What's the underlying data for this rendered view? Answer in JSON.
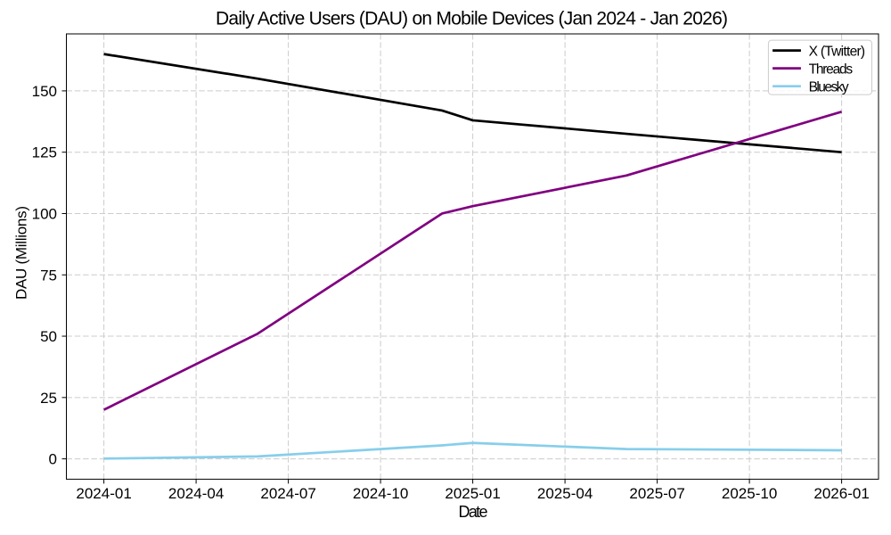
{
  "figure": {
    "background": "#ffffff",
    "text_color": "#000000"
  },
  "chart_data": {
    "type": "line",
    "title": "Daily Active Users (DAU) on Mobile Devices (Jan 2024 - Jan 2026)",
    "xlabel": "Date",
    "ylabel": "DAU (Millions)",
    "x_dates": [
      "2024-01",
      "2024-06",
      "2024-12",
      "2025-01",
      "2025-06",
      "2026-01"
    ],
    "series": [
      {
        "name": "X (Twitter)",
        "color": "#000000",
        "values": [
          165,
          155,
          142,
          138,
          132.5,
          125
        ]
      },
      {
        "name": "Threads",
        "color": "#800080",
        "values": [
          20,
          51,
          100,
          103,
          115.5,
          141.5
        ]
      },
      {
        "name": "Bluesky",
        "color": "#87ceeb",
        "values": [
          0.1,
          1,
          5.5,
          6.5,
          4,
          3.5
        ]
      }
    ],
    "x_tick_labels": [
      "2024-01",
      "2024-04",
      "2024-07",
      "2024-10",
      "2025-01",
      "2025-04",
      "2025-07",
      "2025-10",
      "2026-01"
    ],
    "y_tick_labels": [
      "0",
      "25",
      "50",
      "75",
      "100",
      "125",
      "150"
    ],
    "y_ticks": [
      0,
      25,
      50,
      75,
      100,
      125,
      150
    ],
    "ylim": [
      -8.25,
      173.25
    ],
    "xlim_months": [
      -1.2,
      25.2
    ],
    "grid": {
      "on": true,
      "style": "dashed",
      "color": "#cccccc"
    },
    "legend": {
      "position": "upper right",
      "entries": [
        "X (Twitter)",
        "Threads",
        "Bluesky"
      ],
      "frame_color": "#cccccc",
      "frame_fill": "rgba(255,255,255,0.8)"
    }
  }
}
